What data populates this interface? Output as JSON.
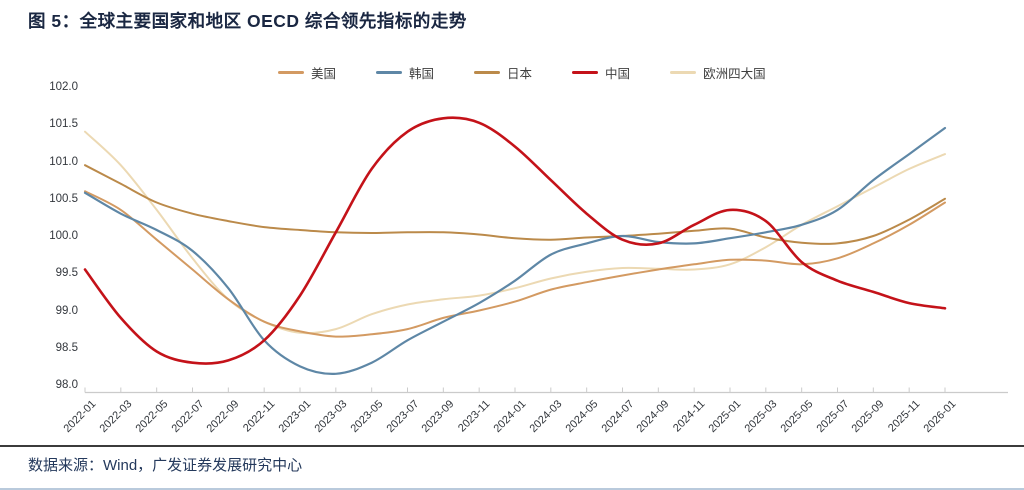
{
  "header": {
    "title": "图 5：全球主要国家和地区 OECD 综合领先指标的走势"
  },
  "footer": {
    "source": "数据来源：Wind，广发证券发展研究中心"
  },
  "chart_data": {
    "type": "line",
    "title": "全球主要国家和地区 OECD 综合领先指标的走势",
    "xlabel": "",
    "ylabel": "",
    "grid": false,
    "legend_position": "top",
    "ylim": [
      98.0,
      102.0
    ],
    "yticks": [
      "102.0",
      "101.5",
      "101.0",
      "100.5",
      "100.0",
      "99.5",
      "99.0",
      "98.5",
      "98.0"
    ],
    "x": [
      "2022-01",
      "2022-03",
      "2022-05",
      "2022-07",
      "2022-09",
      "2022-11",
      "2023-01",
      "2023-03",
      "2023-05",
      "2023-07",
      "2023-09",
      "2023-11",
      "2024-01",
      "2024-03",
      "2024-05",
      "2024-07",
      "2024-09",
      "2024-11",
      "2025-01",
      "2025-03",
      "2025-05",
      "2025-07",
      "2025-09",
      "2025-11",
      "2026-01"
    ],
    "series": [
      {
        "key": "us",
        "name": "美国",
        "color": "#d39a62",
        "line_width": 2,
        "values": [
          100.6,
          100.35,
          99.95,
          99.55,
          99.15,
          98.85,
          98.72,
          98.65,
          98.68,
          98.75,
          98.9,
          99.0,
          99.12,
          99.28,
          99.38,
          99.47,
          99.55,
          99.62,
          99.68,
          99.67,
          99.62,
          99.7,
          99.9,
          100.15,
          100.45
        ]
      },
      {
        "key": "korea",
        "name": "韩国",
        "color": "#5e87a6",
        "line_width": 2.2,
        "values": [
          100.58,
          100.3,
          100.08,
          99.8,
          99.3,
          98.6,
          98.25,
          98.15,
          98.3,
          98.6,
          98.85,
          99.1,
          99.4,
          99.75,
          99.9,
          100.0,
          99.92,
          99.9,
          99.97,
          100.05,
          100.15,
          100.35,
          100.75,
          101.1,
          101.45
        ]
      },
      {
        "key": "japan",
        "name": "日本",
        "color": "#bb8a4a",
        "line_width": 2,
        "values": [
          100.95,
          100.7,
          100.45,
          100.3,
          100.2,
          100.12,
          100.08,
          100.05,
          100.04,
          100.05,
          100.05,
          100.02,
          99.97,
          99.95,
          99.98,
          100.0,
          100.03,
          100.07,
          100.1,
          99.98,
          99.91,
          99.9,
          100.0,
          100.22,
          100.5
        ]
      },
      {
        "key": "china",
        "name": "中国",
        "color": "#c41219",
        "line_width": 2.6,
        "values": [
          99.55,
          98.9,
          98.45,
          98.3,
          98.33,
          98.6,
          99.2,
          100.05,
          100.9,
          101.4,
          101.58,
          101.52,
          101.2,
          100.75,
          100.3,
          99.95,
          99.9,
          100.15,
          100.35,
          100.2,
          99.65,
          99.4,
          99.25,
          99.1,
          99.03
        ]
      },
      {
        "key": "europe4",
        "name": "欧洲四大国",
        "color": "#ecd9b3",
        "line_width": 2,
        "values": [
          101.4,
          100.95,
          100.35,
          99.7,
          99.15,
          98.85,
          98.7,
          98.75,
          98.95,
          99.08,
          99.15,
          99.2,
          99.3,
          99.43,
          99.52,
          99.57,
          99.56,
          99.55,
          99.62,
          99.85,
          100.15,
          100.4,
          100.65,
          100.9,
          101.1
        ]
      }
    ],
    "draw_order": [
      "europe4",
      "us",
      "japan",
      "korea",
      "china"
    ],
    "axis_color": "#cbcbcb"
  }
}
